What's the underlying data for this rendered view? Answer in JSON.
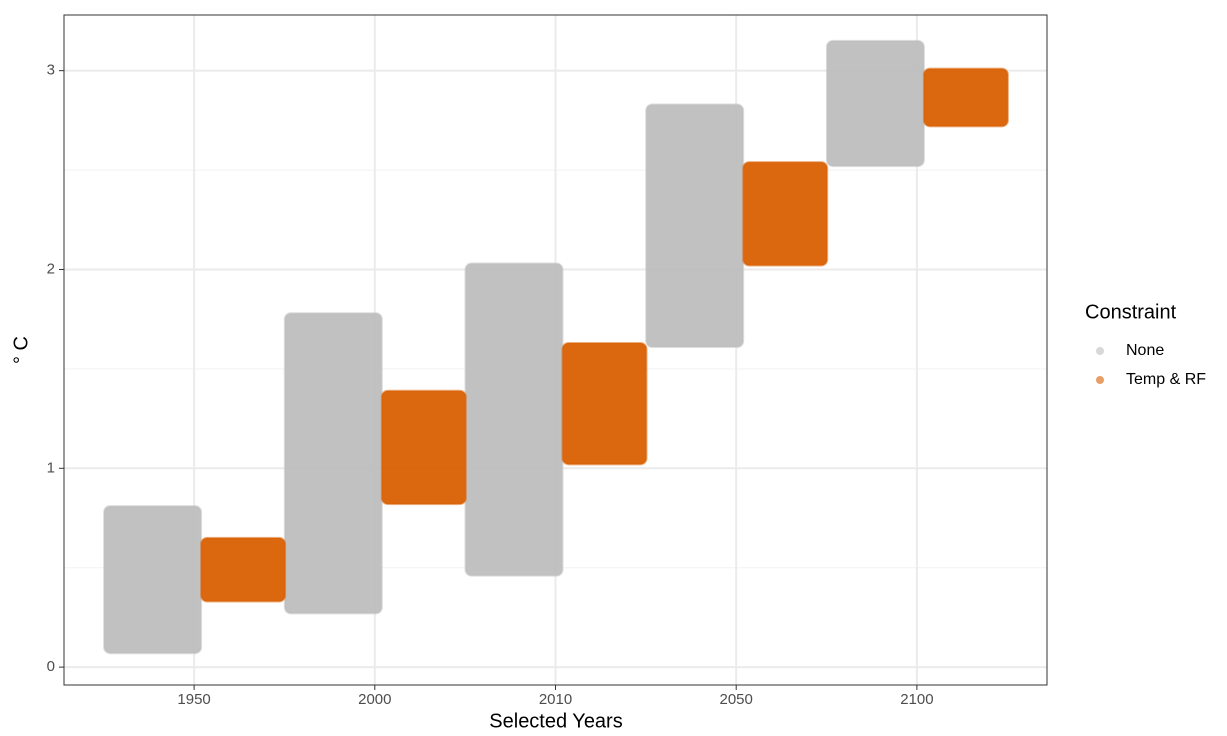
{
  "chart_data": {
    "type": "range-strip",
    "x_label": "Selected Years",
    "y_label": "° C",
    "categories": [
      "1950",
      "2000",
      "2010",
      "2050",
      "2100"
    ],
    "series": [
      {
        "name": "None",
        "color": "#bebebe",
        "low": [
          0.07,
          0.27,
          0.46,
          1.61,
          2.52
        ],
        "high": [
          0.81,
          1.78,
          2.03,
          2.83,
          3.15
        ]
      },
      {
        "name": "Temp & RF",
        "color": "#d95f02",
        "low": [
          0.33,
          0.82,
          1.02,
          2.02,
          2.72
        ],
        "high": [
          0.65,
          1.39,
          1.63,
          2.54,
          3.01
        ]
      }
    ],
    "ylim": [
      -0.09,
      3.28
    ],
    "yticks": [
      0,
      1,
      2,
      3
    ],
    "minor_yticks": [
      0.5,
      1.5,
      2.5
    ],
    "grid": true,
    "legend_title": "Constraint",
    "legend_position": "right"
  }
}
